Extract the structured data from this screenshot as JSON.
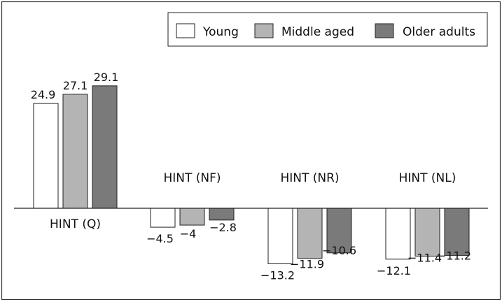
{
  "chart_data": {
    "type": "bar",
    "title": "",
    "xlabel": "",
    "ylabel": "",
    "categories": [
      "HINT (Q)",
      "HINT (NF)",
      "HINT (NR)",
      "HINT (NL)"
    ],
    "series": [
      {
        "name": "Young",
        "values": [
          24.9,
          -4.5,
          -13.2,
          -12.1
        ],
        "color": "#ffffff"
      },
      {
        "name": "Middle aged",
        "values": [
          27.1,
          -4,
          -11.9,
          -11.4
        ],
        "color": "#b4b4b4"
      },
      {
        "name": "Older adults",
        "values": [
          29.1,
          -2.8,
          -10.6,
          -11.2
        ],
        "color": "#7a7a7a"
      }
    ],
    "value_labels": [
      [
        "24.9",
        "27.1",
        "29.1"
      ],
      [
        "−4.5",
        "−4",
        "−2.8"
      ],
      [
        "−13.2",
        "−11.9",
        "−10.6"
      ],
      [
        "−12.1",
        "−11.4",
        "−11.2"
      ]
    ],
    "ylim": [
      -14,
      31
    ],
    "grid": false,
    "legend_position": "top-right",
    "frame_color": "#333333",
    "bar_stroke": "#222222"
  }
}
